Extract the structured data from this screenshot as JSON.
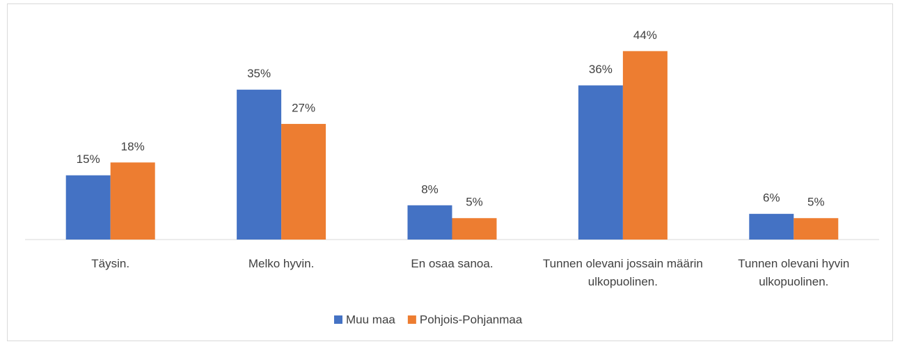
{
  "chart_data": {
    "type": "bar",
    "categories": [
      "Täysin.",
      "Melko hyvin.",
      "En osaa sanoa.",
      "Tunnen olevani jossain määrin ulkopuolinen.",
      "Tunnen olevani hyvin ulkopuolinen."
    ],
    "series": [
      {
        "name": "Muu maa",
        "color": "#4472c4",
        "values": [
          15,
          35,
          8,
          36,
          6
        ],
        "value_labels": [
          "15%",
          "35%",
          "8%",
          "36%",
          "6%"
        ]
      },
      {
        "name": "Pohjois-Pohjanmaa",
        "color": "#ed7d31",
        "values": [
          18,
          27,
          5,
          44,
          5
        ],
        "value_labels": [
          "18%",
          "27%",
          "5%",
          "44%",
          "5%"
        ]
      }
    ]
  }
}
